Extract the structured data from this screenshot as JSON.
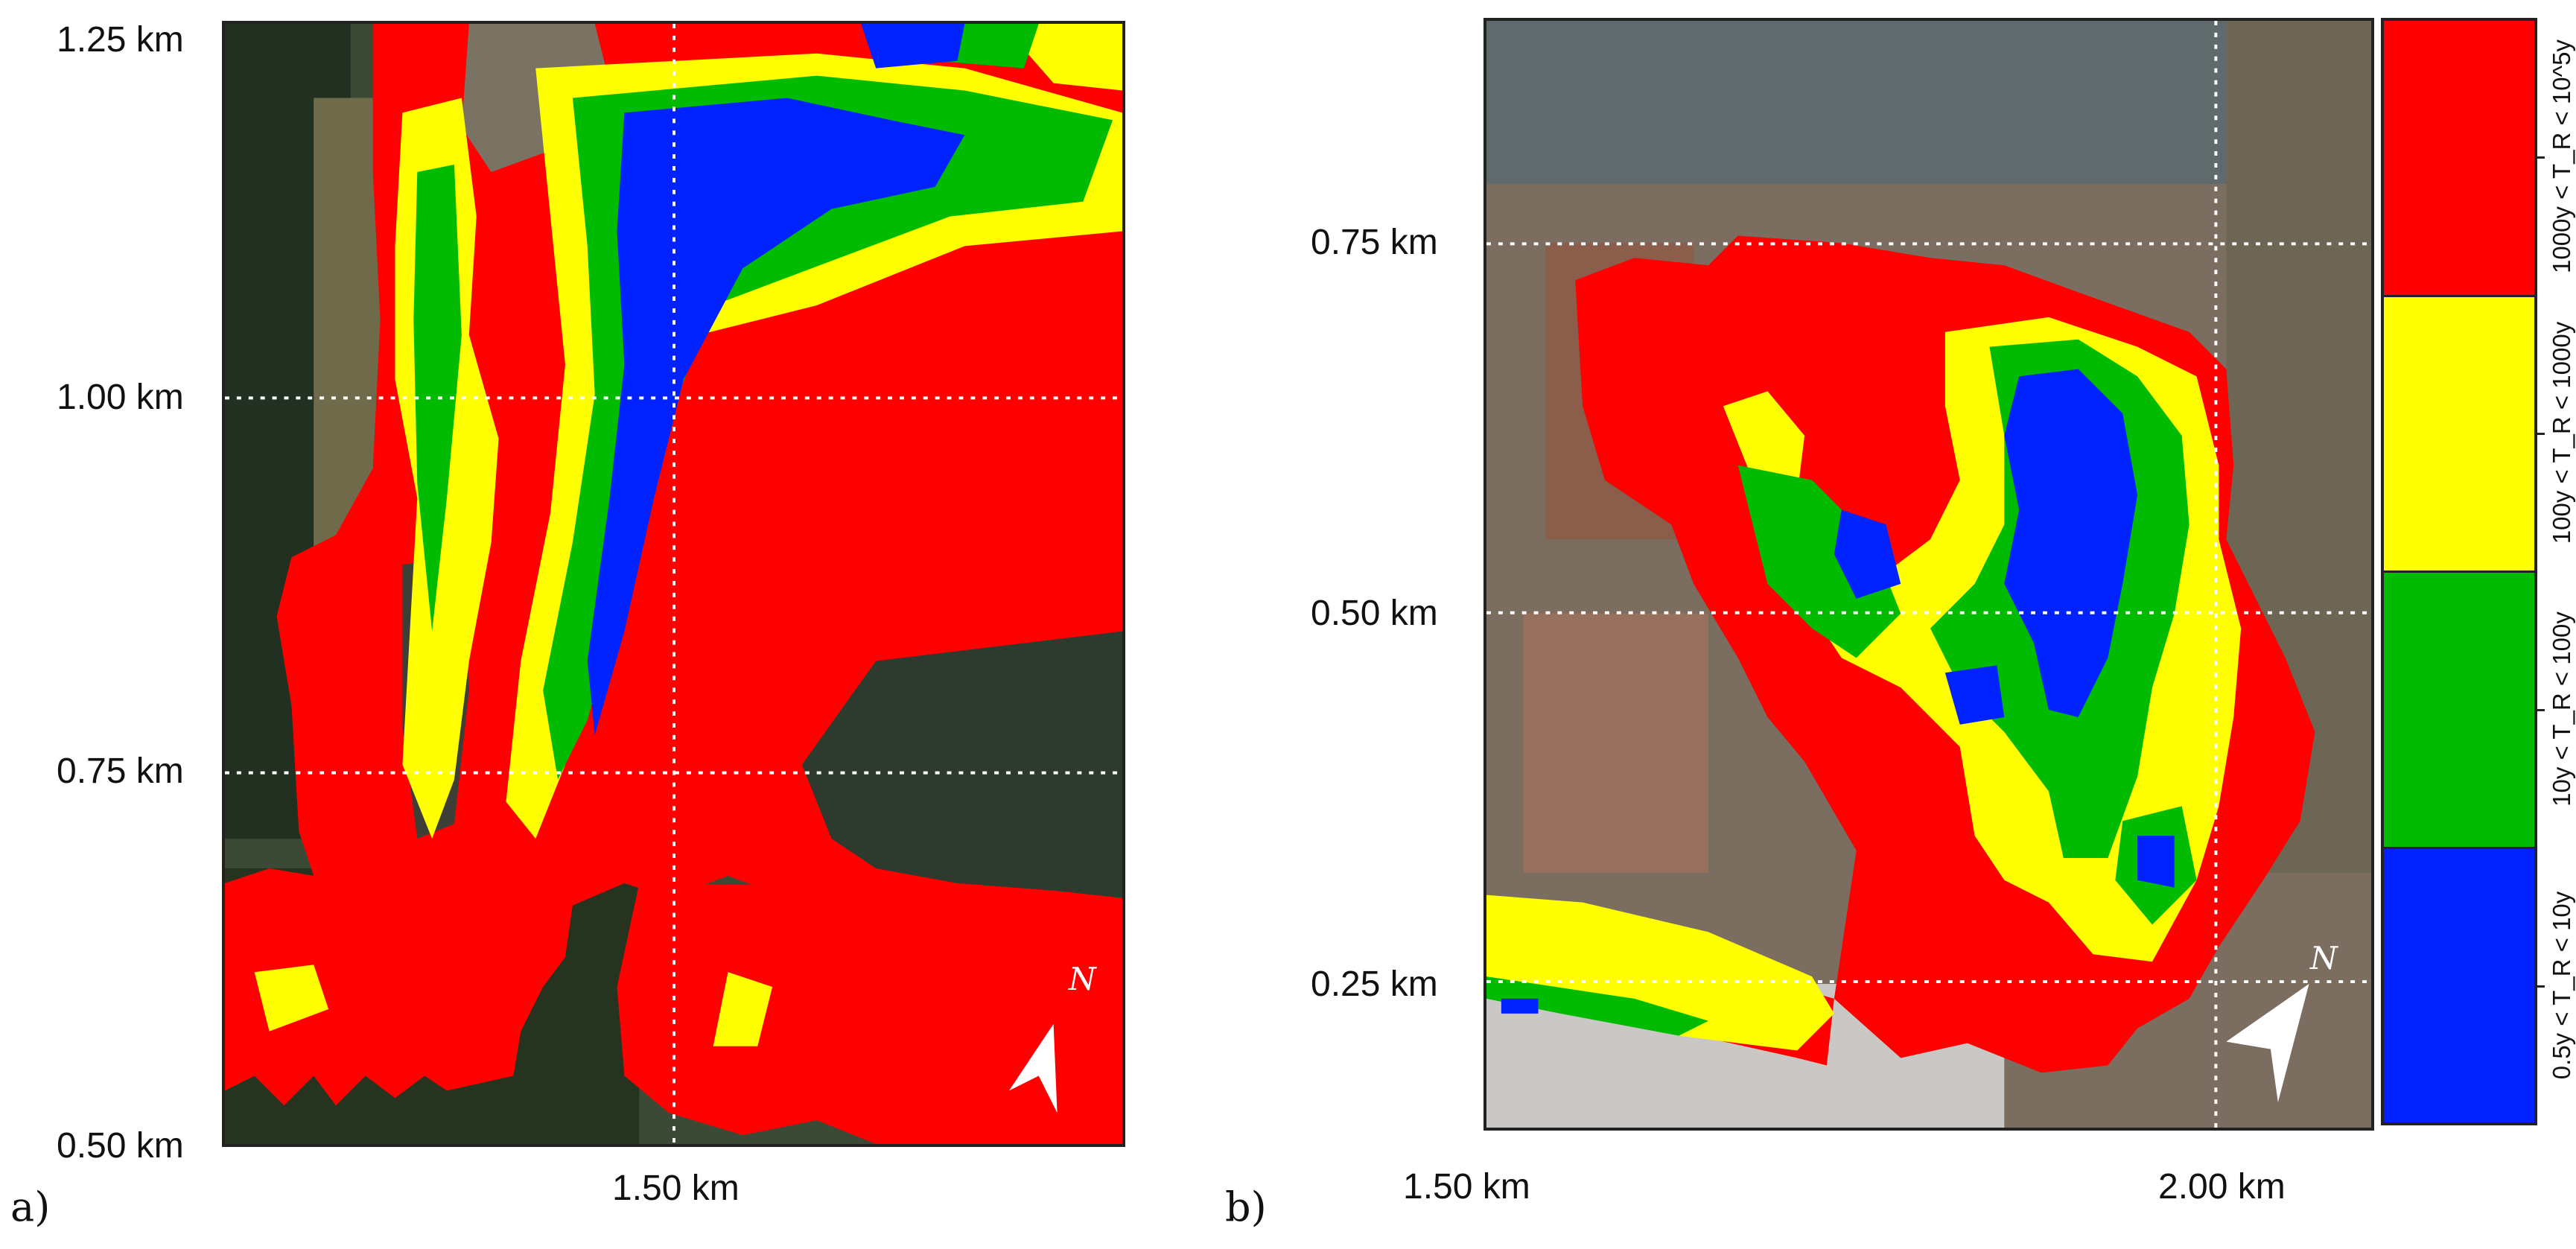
{
  "panels": {
    "a": {
      "letter": "a)",
      "y_ticks": [
        "1.25 km",
        "1.00 km",
        "0.75 km",
        "0.50 km"
      ],
      "x_ticks": [
        "1.50 km"
      ],
      "north_label": "N"
    },
    "b": {
      "letter": "b)",
      "y_ticks": [
        "0.75 km",
        "0.50 km",
        "0.25 km"
      ],
      "x_ticks": [
        "1.50 km",
        "2.00 km"
      ],
      "north_label": "N"
    }
  },
  "legend": {
    "title": "",
    "classes": [
      {
        "label": "1000y < T_R < 10^5y",
        "color": "#ff0000"
      },
      {
        "label": "100y < T_R < 1000y",
        "color": "#ffff00"
      },
      {
        "label": "10y < T_R < 100y",
        "color": "#00bb00"
      },
      {
        "label": "0.5y < T_R < 10y",
        "color": "#0022ff"
      }
    ]
  },
  "colors": {
    "red": "#ff0000",
    "yellow": "#ffff00",
    "green": "#00bb00",
    "blue": "#0022ff",
    "forest": "#2e3a2c",
    "field": "#4a4d42",
    "urban": "#7a6a5c"
  }
}
